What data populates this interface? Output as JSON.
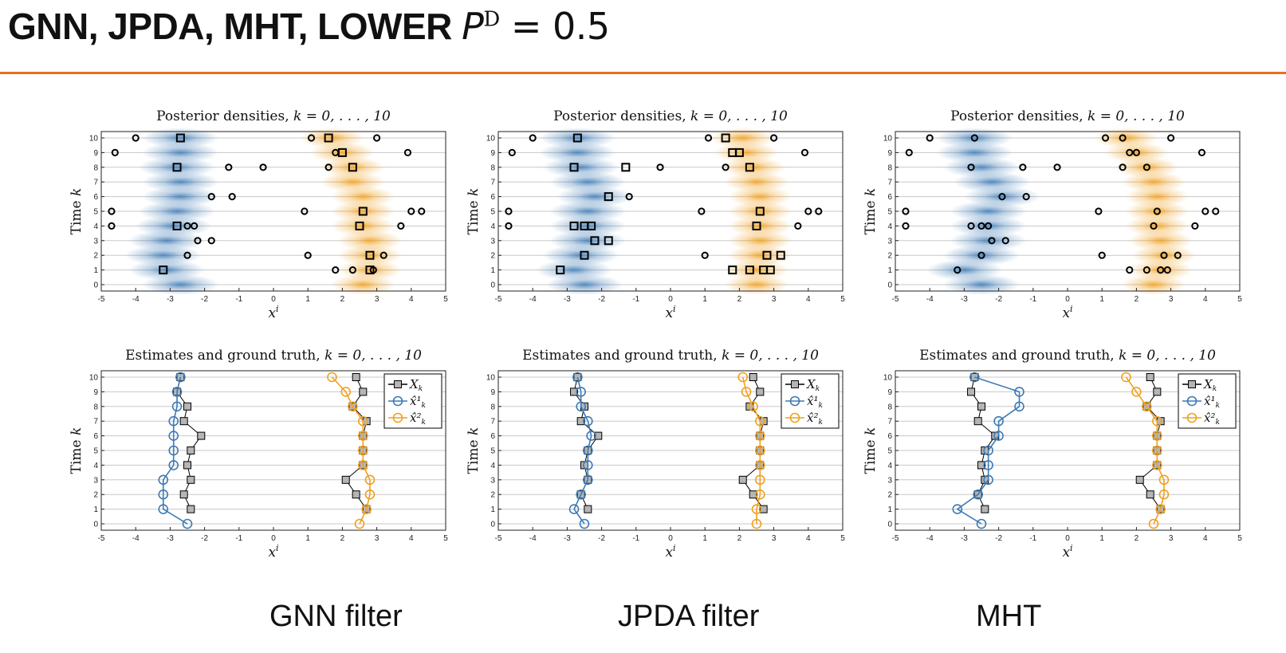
{
  "slide": {
    "title_text": "GNN, JPDA, MHT, LOWER ",
    "title_P": "P",
    "title_sup": "D",
    "title_rest": " = 0.5"
  },
  "captions": [
    "GNN filter",
    "JPDA filter",
    "MHT"
  ],
  "colors": {
    "accent": "#e8701f",
    "blue": "#3d7ab5",
    "orange": "#f0a020",
    "gray_marker": "#b5b5b5"
  },
  "chart_data": [
    {
      "type": "heatmap",
      "panel": "GNN posterior",
      "title_prefix": "Posterior densities, ",
      "title_math": "k = 0, . . . , 10",
      "xlabel": "x",
      "xlabel_sup": "i",
      "ylabel": "Time k",
      "xlim": [
        -5,
        5
      ],
      "ylim": [
        0,
        10
      ],
      "blue_means": [
        -2.7,
        -3.1,
        -3.2,
        -3.1,
        -2.9,
        -2.8,
        -2.7,
        -2.7,
        -2.8,
        -2.7,
        -2.7
      ],
      "orange_means": [
        2.6,
        2.8,
        2.8,
        2.8,
        2.6,
        2.6,
        2.6,
        2.3,
        2.3,
        2.0,
        1.7
      ],
      "clutter": [
        [
          -4.0,
          10
        ],
        [
          1.1,
          10
        ],
        [
          3.0,
          10
        ],
        [
          -4.6,
          9
        ],
        [
          1.8,
          9
        ],
        [
          3.9,
          9
        ],
        [
          -1.3,
          8
        ],
        [
          -0.3,
          8
        ],
        [
          1.6,
          8
        ],
        [
          -1.8,
          6
        ],
        [
          -1.2,
          6
        ],
        [
          -4.7,
          5
        ],
        [
          0.9,
          5
        ],
        [
          4.0,
          5
        ],
        [
          4.3,
          5
        ],
        [
          -4.7,
          4
        ],
        [
          -2.5,
          4
        ],
        [
          -2.3,
          4
        ],
        [
          3.7,
          4
        ],
        [
          -2.2,
          3
        ],
        [
          -1.8,
          3
        ],
        [
          -2.5,
          2
        ],
        [
          1.0,
          2
        ],
        [
          3.2,
          2
        ],
        [
          1.8,
          1
        ],
        [
          2.3,
          1
        ],
        [
          2.9,
          1
        ]
      ],
      "detections": [
        [
          -2.7,
          10
        ],
        [
          1.6,
          10
        ],
        [
          2.0,
          9
        ],
        [
          -2.8,
          8
        ],
        [
          2.3,
          8
        ],
        [
          2.6,
          5
        ],
        [
          -2.8,
          4
        ],
        [
          2.5,
          4
        ],
        [
          2.8,
          2
        ],
        [
          -3.2,
          1
        ],
        [
          2.8,
          1
        ]
      ]
    },
    {
      "type": "heatmap",
      "panel": "JPDA posterior",
      "title_prefix": "Posterior densities, ",
      "title_math": "k = 0, . . . , 10",
      "xlabel": "x",
      "xlabel_sup": "i",
      "ylabel": "Time k",
      "xlim": [
        -5,
        5
      ],
      "ylim": [
        0,
        10
      ],
      "blue_means": [
        -2.5,
        -2.8,
        -2.6,
        -2.4,
        -2.4,
        -2.4,
        -2.2,
        -2.4,
        -2.6,
        -2.7,
        -2.7
      ],
      "orange_means": [
        2.5,
        2.5,
        2.6,
        2.6,
        2.6,
        2.6,
        2.6,
        2.5,
        2.4,
        2.2,
        2.1
      ],
      "clutter": [
        [
          -4.0,
          10
        ],
        [
          1.1,
          10
        ],
        [
          3.0,
          10
        ],
        [
          -4.6,
          9
        ],
        [
          3.9,
          9
        ],
        [
          -0.3,
          8
        ],
        [
          1.6,
          8
        ],
        [
          -1.2,
          6
        ],
        [
          -4.7,
          5
        ],
        [
          0.9,
          5
        ],
        [
          4.0,
          5
        ],
        [
          4.3,
          5
        ],
        [
          -4.7,
          4
        ],
        [
          3.7,
          4
        ],
        [
          1.0,
          2
        ]
      ],
      "detections": [
        [
          -2.7,
          10
        ],
        [
          1.6,
          10
        ],
        [
          1.8,
          9
        ],
        [
          2.0,
          9
        ],
        [
          -2.8,
          8
        ],
        [
          -1.3,
          8
        ],
        [
          2.3,
          8
        ],
        [
          -1.8,
          6
        ],
        [
          2.6,
          5
        ],
        [
          -2.8,
          4
        ],
        [
          -2.5,
          4
        ],
        [
          -2.3,
          4
        ],
        [
          2.5,
          4
        ],
        [
          -2.2,
          3
        ],
        [
          -1.8,
          3
        ],
        [
          -2.5,
          2
        ],
        [
          2.8,
          2
        ],
        [
          3.2,
          2
        ],
        [
          -3.2,
          1
        ],
        [
          1.8,
          1
        ],
        [
          2.3,
          1
        ],
        [
          2.7,
          1
        ],
        [
          2.9,
          1
        ]
      ]
    },
    {
      "type": "heatmap",
      "panel": "MHT posterior",
      "title_prefix": "Posterior densities, ",
      "title_math": "k = 0, . . . , 10",
      "xlabel": "x",
      "xlabel_sup": "i",
      "ylabel": "Time k",
      "xlim": [
        -5,
        5
      ],
      "ylim": [
        0,
        10
      ],
      "blue_means": [
        -2.5,
        -3.0,
        -2.5,
        -2.3,
        -2.3,
        -2.3,
        -1.9,
        -2.2,
        -2.5,
        -2.7,
        -2.7
      ],
      "orange_means": [
        2.5,
        2.7,
        2.8,
        2.7,
        2.6,
        2.6,
        2.6,
        2.5,
        2.3,
        2.0,
        1.7
      ],
      "clutter": [
        [
          -4.0,
          10
        ],
        [
          -2.7,
          10
        ],
        [
          1.1,
          10
        ],
        [
          1.6,
          10
        ],
        [
          3.0,
          10
        ],
        [
          -4.6,
          9
        ],
        [
          1.8,
          9
        ],
        [
          2.0,
          9
        ],
        [
          3.9,
          9
        ],
        [
          -2.8,
          8
        ],
        [
          -1.3,
          8
        ],
        [
          -0.3,
          8
        ],
        [
          1.6,
          8
        ],
        [
          2.3,
          8
        ],
        [
          -1.9,
          6
        ],
        [
          -1.2,
          6
        ],
        [
          -4.7,
          5
        ],
        [
          0.9,
          5
        ],
        [
          2.6,
          5
        ],
        [
          4.0,
          5
        ],
        [
          4.3,
          5
        ],
        [
          -4.7,
          4
        ],
        [
          -2.8,
          4
        ],
        [
          -2.5,
          4
        ],
        [
          -2.3,
          4
        ],
        [
          2.5,
          4
        ],
        [
          3.7,
          4
        ],
        [
          -2.2,
          3
        ],
        [
          -1.8,
          3
        ],
        [
          -2.5,
          2
        ],
        [
          1.0,
          2
        ],
        [
          2.8,
          2
        ],
        [
          3.2,
          2
        ],
        [
          -3.2,
          1
        ],
        [
          1.8,
          1
        ],
        [
          2.3,
          1
        ],
        [
          2.7,
          1
        ],
        [
          2.9,
          1
        ]
      ],
      "detections": []
    },
    {
      "type": "line",
      "panel": "GNN estimates",
      "title_prefix": "Estimates and ground truth, ",
      "title_math": "k = 0, . . . , 10",
      "xlabel": "x",
      "xlabel_sup": "i",
      "ylabel": "Time k",
      "xlim": [
        -5,
        5
      ],
      "ylim": [
        0,
        10
      ],
      "legend": [
        "X",
        "x̂¹",
        "x̂²"
      ],
      "legend_position": "top-right",
      "truth1": [
        null,
        -2.4,
        -2.6,
        -2.4,
        -2.5,
        -2.4,
        -2.1,
        -2.6,
        -2.5,
        -2.8,
        -2.7
      ],
      "truth2": [
        null,
        2.7,
        2.4,
        2.1,
        2.6,
        2.6,
        2.6,
        2.7,
        2.3,
        2.6,
        2.4
      ],
      "est1": [
        -2.5,
        -3.2,
        -3.2,
        -3.2,
        -2.9,
        -2.9,
        -2.9,
        -2.9,
        -2.8,
        -2.8,
        -2.7
      ],
      "est2": [
        2.5,
        2.7,
        2.8,
        2.8,
        2.6,
        2.6,
        2.6,
        2.6,
        2.3,
        2.1,
        1.7
      ]
    },
    {
      "type": "line",
      "panel": "JPDA estimates",
      "title_prefix": "Estimates and ground truth, ",
      "title_math": "k = 0, . . . , 10",
      "xlabel": "x",
      "xlabel_sup": "i",
      "ylabel": "Time k",
      "xlim": [
        -5,
        5
      ],
      "ylim": [
        0,
        10
      ],
      "legend": [
        "X",
        "x̂¹",
        "x̂²"
      ],
      "legend_position": "top-right",
      "truth1": [
        null,
        -2.4,
        -2.6,
        -2.4,
        -2.5,
        -2.4,
        -2.1,
        -2.6,
        -2.5,
        -2.8,
        -2.7
      ],
      "truth2": [
        null,
        2.7,
        2.4,
        2.1,
        2.6,
        2.6,
        2.6,
        2.7,
        2.3,
        2.6,
        2.4
      ],
      "est1": [
        -2.5,
        -2.8,
        -2.6,
        -2.4,
        -2.4,
        -2.4,
        -2.3,
        -2.4,
        -2.6,
        -2.6,
        -2.7
      ],
      "est2": [
        2.5,
        2.5,
        2.6,
        2.6,
        2.6,
        2.6,
        2.6,
        2.6,
        2.4,
        2.2,
        2.1
      ]
    },
    {
      "type": "line",
      "panel": "MHT estimates",
      "title_prefix": "Estimates and ground truth, ",
      "title_math": "k = 0, . . . , 10",
      "xlabel": "x",
      "xlabel_sup": "i",
      "ylabel": "Time k",
      "xlim": [
        -5,
        5
      ],
      "ylim": [
        0,
        10
      ],
      "legend": [
        "X",
        "x̂¹",
        "x̂²"
      ],
      "legend_position": "top-right",
      "truth1": [
        null,
        -2.4,
        -2.6,
        -2.4,
        -2.5,
        -2.4,
        -2.1,
        -2.6,
        -2.5,
        -2.8,
        -2.7
      ],
      "truth2": [
        null,
        2.7,
        2.4,
        2.1,
        2.6,
        2.6,
        2.6,
        2.7,
        2.3,
        2.6,
        2.4
      ],
      "est1": [
        -2.5,
        -3.2,
        -2.6,
        -2.3,
        -2.3,
        -2.3,
        -2.0,
        -2.0,
        -1.4,
        -1.4,
        -2.7
      ],
      "est2": [
        2.5,
        2.7,
        2.8,
        2.8,
        2.6,
        2.6,
        2.6,
        2.6,
        2.3,
        2.0,
        1.7
      ]
    }
  ]
}
